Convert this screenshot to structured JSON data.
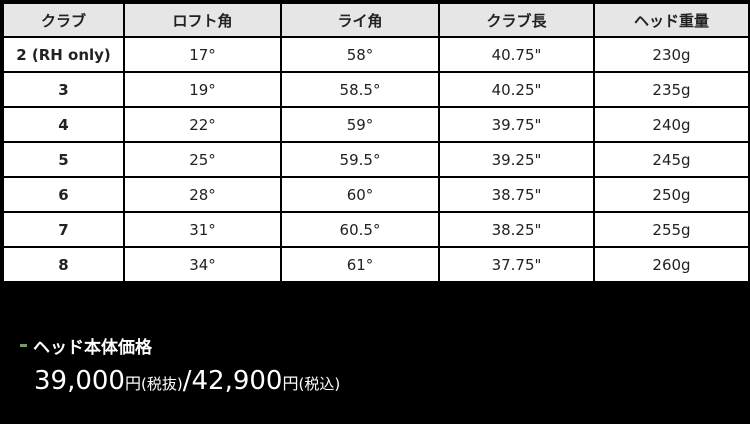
{
  "table": {
    "headers": [
      "クラブ",
      "ロフト角",
      "ライ角",
      "クラブ長",
      "ヘッド重量"
    ],
    "rows": [
      [
        "2 (RH only)",
        "17°",
        "58°",
        "40.75\"",
        "230g"
      ],
      [
        "3",
        "19°",
        "58.5°",
        "40.25\"",
        "235g"
      ],
      [
        "4",
        "22°",
        "59°",
        "39.75\"",
        "240g"
      ],
      [
        "5",
        "25°",
        "59.5°",
        "39.25\"",
        "245g"
      ],
      [
        "6",
        "28°",
        "60°",
        "38.75\"",
        "250g"
      ],
      [
        "7",
        "31°",
        "60.5°",
        "38.25\"",
        "255g"
      ],
      [
        "8",
        "34°",
        "61°",
        "37.75\"",
        "260g"
      ]
    ]
  },
  "price": {
    "label": "ヘッド本体価格",
    "excl_value": "39,000",
    "yen": "円",
    "excl_note": "(税抜)",
    "separator": "/",
    "incl_value": "42,900",
    "incl_note": "(税込)"
  },
  "colors": {
    "accent": "#7a9a6a",
    "header_bg": "#e6e6e6",
    "background": "#000000"
  }
}
